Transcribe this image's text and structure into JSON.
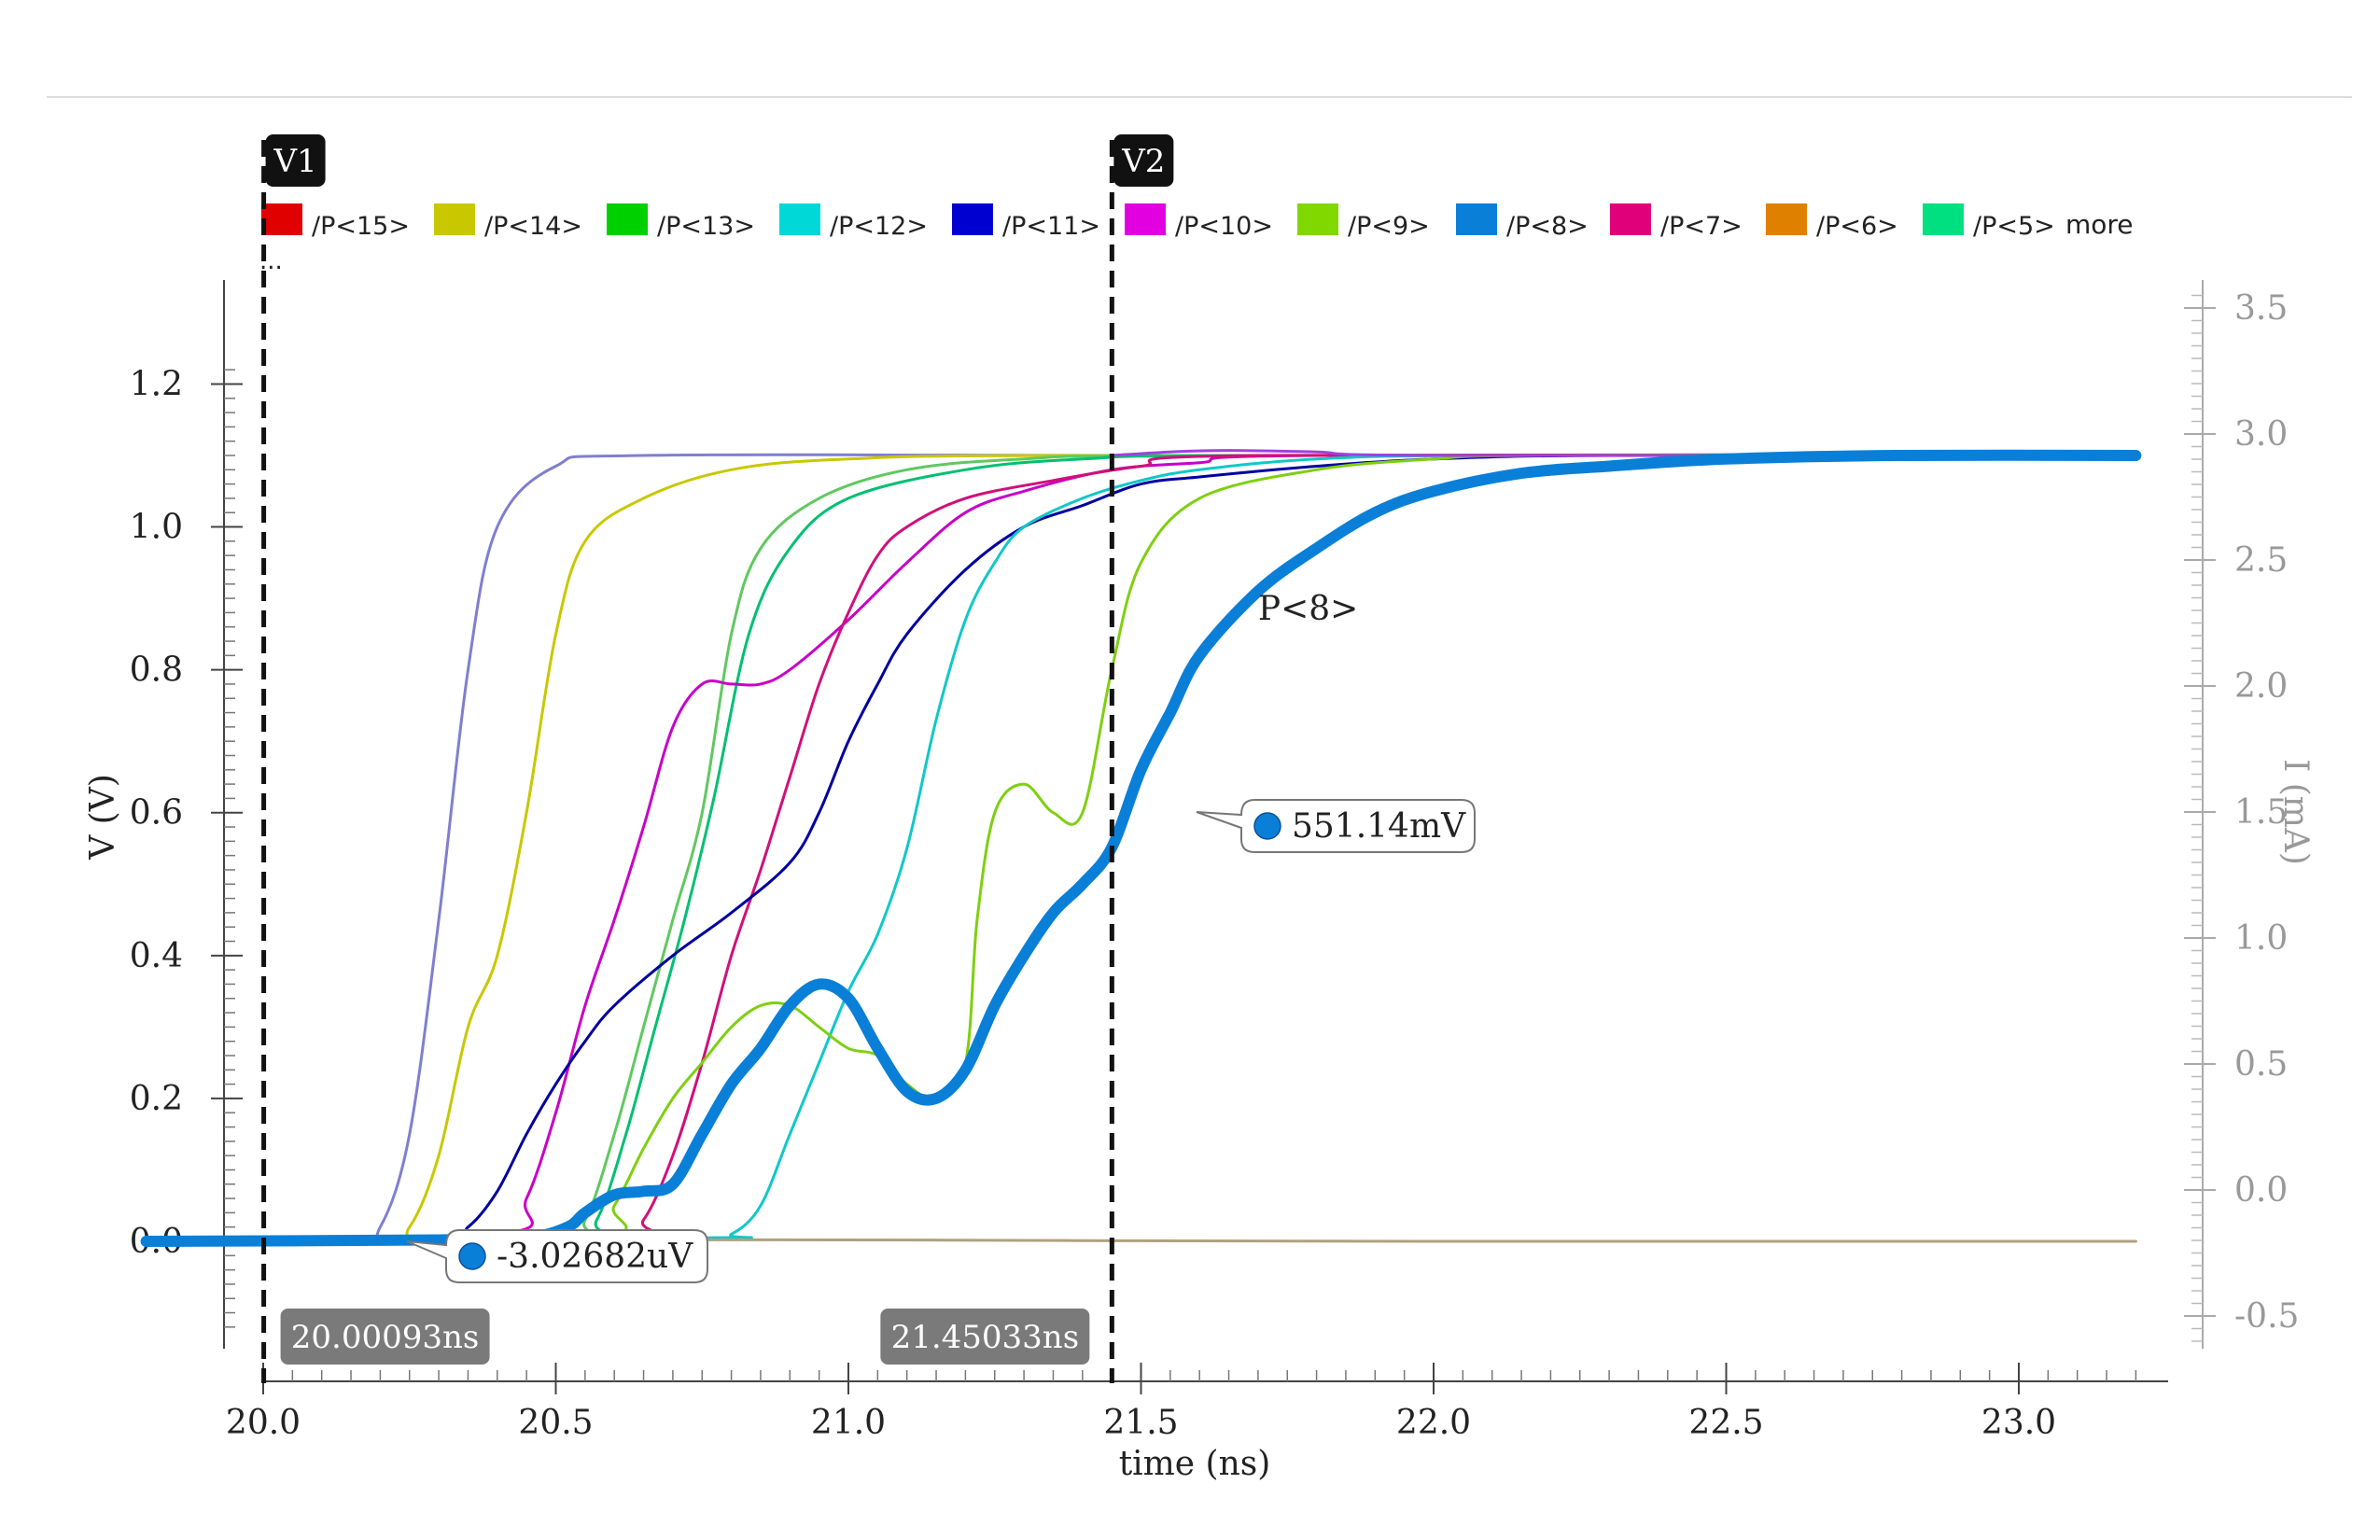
{
  "chart_data": {
    "type": "line",
    "legend": {
      "placement": "top",
      "entries": [
        {
          "label": "/P<15>",
          "color": "#e00000"
        },
        {
          "label": "/P<14>",
          "color": "#c8c800"
        },
        {
          "label": "/P<13>",
          "color": "#00d000"
        },
        {
          "label": "/P<12>",
          "color": "#00d8d8"
        },
        {
          "label": "/P<11>",
          "color": "#0000d0"
        },
        {
          "label": "/P<10>",
          "color": "#e000e0"
        },
        {
          "label": "/P<9>",
          "color": "#80d800"
        },
        {
          "label": "/P<8>",
          "color": "#0a7fd8"
        },
        {
          "label": "/P<7>",
          "color": "#e0007a"
        },
        {
          "label": "/P<6>",
          "color": "#e08000"
        },
        {
          "label": "/P<5>",
          "color": "#00e080"
        }
      ],
      "more_label": "more",
      "ellipsis": "..."
    },
    "x_axis": {
      "label": "time (ns)",
      "range": [
        19.79,
        23.22
      ],
      "ticks": [
        "20.0",
        "20.5",
        "21.0",
        "21.5",
        "22.0",
        "22.5",
        "23.0"
      ],
      "tick_values": [
        20.0,
        20.5,
        21.0,
        21.5,
        22.0,
        22.5,
        23.0
      ]
    },
    "y_axis_left": {
      "label": "V (V)",
      "range": [
        -0.12,
        1.23
      ],
      "ticks": [
        "1.2",
        "1.0",
        "0.8",
        "0.6",
        "0.4",
        "0.2",
        "0.0"
      ],
      "tick_values": [
        1.2,
        1.0,
        0.8,
        0.6,
        0.4,
        0.2,
        0.0
      ]
    },
    "y_axis_right": {
      "label": "I (mA)",
      "range": [
        -0.6,
        3.55
      ],
      "ticks": [
        "3.5",
        "3.0",
        "2.5",
        "2.0",
        "1.5",
        "1.0",
        "0.5",
        "0.0",
        "-0.5"
      ],
      "tick_values": [
        3.5,
        3.0,
        2.5,
        2.0,
        1.5,
        1.0,
        0.5,
        0.0,
        -0.5
      ],
      "color": "#999999"
    },
    "grid": false,
    "cursors": [
      {
        "name": "V1",
        "x": 20.00093,
        "x_label": "20.00093ns"
      },
      {
        "name": "V2",
        "x": 21.45033,
        "x_label": "21.45033ns"
      }
    ],
    "markers": [
      {
        "label": "-3.02682uV",
        "x": 20.00093,
        "y": 0.0
      },
      {
        "label": "551.14mV",
        "x": 21.45033,
        "y": 0.55114
      }
    ],
    "annotations": [
      {
        "text": "P<8>",
        "x": 21.7,
        "y": 0.87
      }
    ],
    "series": [
      {
        "color": "#7f7fcf",
        "width": 2,
        "points": [
          [
            19.8,
            0
          ],
          [
            20.15,
            0.003
          ],
          [
            20.2,
            0.02
          ],
          [
            20.25,
            0.15
          ],
          [
            20.3,
            0.45
          ],
          [
            20.35,
            0.8
          ],
          [
            20.4,
            1.0
          ],
          [
            20.5,
            1.085
          ],
          [
            20.65,
            1.1
          ],
          [
            21.5,
            1.1
          ],
          [
            23.2,
            1.1
          ]
        ]
      },
      {
        "color": "#c8c800",
        "width": 2,
        "points": [
          [
            19.8,
            0
          ],
          [
            20.2,
            0.002
          ],
          [
            20.25,
            0.02
          ],
          [
            20.3,
            0.12
          ],
          [
            20.35,
            0.3
          ],
          [
            20.4,
            0.4
          ],
          [
            20.45,
            0.6
          ],
          [
            20.5,
            0.85
          ],
          [
            20.55,
            0.98
          ],
          [
            20.65,
            1.04
          ],
          [
            20.8,
            1.08
          ],
          [
            21.0,
            1.095
          ],
          [
            21.4,
            1.1
          ],
          [
            23.2,
            1.1
          ]
        ]
      },
      {
        "color": "#60c860",
        "width": 2,
        "points": [
          [
            19.8,
            0
          ],
          [
            20.5,
            0.005
          ],
          [
            20.55,
            0.03
          ],
          [
            20.6,
            0.15
          ],
          [
            20.65,
            0.3
          ],
          [
            20.7,
            0.45
          ],
          [
            20.75,
            0.6
          ],
          [
            20.8,
            0.85
          ],
          [
            20.85,
            0.97
          ],
          [
            20.95,
            1.04
          ],
          [
            21.1,
            1.08
          ],
          [
            21.3,
            1.095
          ],
          [
            21.6,
            1.1
          ],
          [
            23.2,
            1.1
          ]
        ]
      },
      {
        "color": "#00c070",
        "width": 2,
        "points": [
          [
            19.8,
            0
          ],
          [
            20.52,
            0.005
          ],
          [
            20.57,
            0.03
          ],
          [
            20.62,
            0.15
          ],
          [
            20.67,
            0.3
          ],
          [
            20.72,
            0.45
          ],
          [
            20.77,
            0.62
          ],
          [
            20.83,
            0.85
          ],
          [
            20.9,
            0.97
          ],
          [
            21.0,
            1.04
          ],
          [
            21.2,
            1.08
          ],
          [
            21.4,
            1.095
          ],
          [
            21.7,
            1.1
          ],
          [
            23.2,
            1.1
          ]
        ]
      },
      {
        "color": "#c800c8",
        "width": 2,
        "points": [
          [
            19.8,
            0
          ],
          [
            20.4,
            0.01
          ],
          [
            20.45,
            0.06
          ],
          [
            20.5,
            0.18
          ],
          [
            20.55,
            0.33
          ],
          [
            20.6,
            0.45
          ],
          [
            20.65,
            0.58
          ],
          [
            20.7,
            0.72
          ],
          [
            20.75,
            0.78
          ],
          [
            20.8,
            0.78
          ],
          [
            20.85,
            0.78
          ],
          [
            20.9,
            0.8
          ],
          [
            21.0,
            0.87
          ],
          [
            21.1,
            0.95
          ],
          [
            21.2,
            1.02
          ],
          [
            21.3,
            1.05
          ],
          [
            21.45,
            1.08
          ],
          [
            21.6,
            1.09
          ],
          [
            21.8,
            1.1
          ],
          [
            23.2,
            1.1
          ]
        ]
      },
      {
        "color": "#d0107a",
        "width": 2,
        "points": [
          [
            19.8,
            0
          ],
          [
            20.6,
            0.005
          ],
          [
            20.65,
            0.03
          ],
          [
            20.7,
            0.12
          ],
          [
            20.75,
            0.25
          ],
          [
            20.8,
            0.4
          ],
          [
            20.85,
            0.52
          ],
          [
            20.9,
            0.65
          ],
          [
            20.95,
            0.78
          ],
          [
            21.0,
            0.88
          ],
          [
            21.05,
            0.96
          ],
          [
            21.1,
            1.0
          ],
          [
            21.2,
            1.04
          ],
          [
            21.35,
            1.065
          ],
          [
            21.5,
            1.085
          ],
          [
            21.7,
            1.1
          ],
          [
            23.2,
            1.1
          ]
        ]
      },
      {
        "color": "#0000a0",
        "width": 2,
        "points": [
          [
            19.8,
            0
          ],
          [
            20.3,
            0.005
          ],
          [
            20.35,
            0.02
          ],
          [
            20.4,
            0.07
          ],
          [
            20.45,
            0.15
          ],
          [
            20.5,
            0.22
          ],
          [
            20.55,
            0.28
          ],
          [
            20.6,
            0.33
          ],
          [
            20.7,
            0.4
          ],
          [
            20.8,
            0.46
          ],
          [
            20.9,
            0.53
          ],
          [
            20.95,
            0.6
          ],
          [
            21.0,
            0.7
          ],
          [
            21.05,
            0.78
          ],
          [
            21.1,
            0.85
          ],
          [
            21.2,
            0.94
          ],
          [
            21.3,
            1.0
          ],
          [
            21.4,
            1.03
          ],
          [
            21.5,
            1.06
          ],
          [
            21.6,
            1.07
          ],
          [
            21.8,
            1.085
          ],
          [
            22.0,
            1.095
          ],
          [
            22.3,
            1.1
          ],
          [
            23.2,
            1.1
          ]
        ]
      },
      {
        "color": "#10c8c8",
        "width": 2,
        "points": [
          [
            19.8,
            0
          ],
          [
            20.75,
            0.005
          ],
          [
            20.8,
            0.01
          ],
          [
            20.85,
            0.05
          ],
          [
            20.9,
            0.15
          ],
          [
            20.95,
            0.25
          ],
          [
            21.0,
            0.35
          ],
          [
            21.05,
            0.43
          ],
          [
            21.1,
            0.55
          ],
          [
            21.15,
            0.73
          ],
          [
            21.2,
            0.87
          ],
          [
            21.25,
            0.95
          ],
          [
            21.3,
            1.0
          ],
          [
            21.4,
            1.04
          ],
          [
            21.5,
            1.065
          ],
          [
            21.6,
            1.08
          ],
          [
            21.8,
            1.095
          ],
          [
            22.1,
            1.1
          ],
          [
            23.2,
            1.1
          ]
        ]
      },
      {
        "color": "#7fcf10",
        "width": 2,
        "points": [
          [
            19.8,
            0
          ],
          [
            20.55,
            0.005
          ],
          [
            20.6,
            0.05
          ],
          [
            20.65,
            0.13
          ],
          [
            20.7,
            0.2
          ],
          [
            20.75,
            0.25
          ],
          [
            20.8,
            0.3
          ],
          [
            20.85,
            0.33
          ],
          [
            20.9,
            0.33
          ],
          [
            20.95,
            0.3
          ],
          [
            21.0,
            0.27
          ],
          [
            21.05,
            0.26
          ],
          [
            21.1,
            0.22
          ],
          [
            21.15,
            0.2
          ],
          [
            21.2,
            0.25
          ],
          [
            21.22,
            0.45
          ],
          [
            21.25,
            0.6
          ],
          [
            21.3,
            0.64
          ],
          [
            21.35,
            0.6
          ],
          [
            21.4,
            0.6
          ],
          [
            21.45,
            0.8
          ],
          [
            21.5,
            0.95
          ],
          [
            21.6,
            1.04
          ],
          [
            21.8,
            1.08
          ],
          [
            22.0,
            1.095
          ],
          [
            22.2,
            1.1
          ],
          [
            23.2,
            1.1
          ]
        ]
      },
      {
        "color": "#a040e0",
        "width": 2,
        "points": [
          [
            21.45,
            1.1
          ],
          [
            21.55,
            1.105
          ],
          [
            21.65,
            1.107
          ],
          [
            21.8,
            1.105
          ],
          [
            22.0,
            1.1
          ],
          [
            23.2,
            1.1
          ]
        ]
      },
      {
        "color": "#b0a080",
        "width": 2,
        "points": [
          [
            19.8,
            0
          ],
          [
            20.6,
            0.002
          ],
          [
            21.0,
            0.002
          ],
          [
            21.4,
            0.001
          ],
          [
            22.0,
            0
          ],
          [
            23.2,
            0
          ]
        ]
      },
      {
        "color": "#0a7fd8",
        "width": 8,
        "points": [
          [
            19.8,
            0
          ],
          [
            20.3,
            0.002
          ],
          [
            20.45,
            0.005
          ],
          [
            20.52,
            0.02
          ],
          [
            20.55,
            0.04
          ],
          [
            20.6,
            0.065
          ],
          [
            20.65,
            0.07
          ],
          [
            20.7,
            0.08
          ],
          [
            20.75,
            0.15
          ],
          [
            20.8,
            0.22
          ],
          [
            20.85,
            0.27
          ],
          [
            20.9,
            0.33
          ],
          [
            20.95,
            0.36
          ],
          [
            21.0,
            0.34
          ],
          [
            21.05,
            0.27
          ],
          [
            21.1,
            0.21
          ],
          [
            21.15,
            0.2
          ],
          [
            21.2,
            0.24
          ],
          [
            21.25,
            0.33
          ],
          [
            21.3,
            0.4
          ],
          [
            21.35,
            0.46
          ],
          [
            21.4,
            0.5
          ],
          [
            21.45,
            0.551
          ],
          [
            21.5,
            0.66
          ],
          [
            21.55,
            0.74
          ],
          [
            21.6,
            0.82
          ],
          [
            21.7,
            0.91
          ],
          [
            21.8,
            0.97
          ],
          [
            21.9,
            1.02
          ],
          [
            22.0,
            1.05
          ],
          [
            22.15,
            1.075
          ],
          [
            22.3,
            1.085
          ],
          [
            22.5,
            1.095
          ],
          [
            22.8,
            1.1
          ],
          [
            23.2,
            1.1
          ]
        ]
      }
    ]
  }
}
